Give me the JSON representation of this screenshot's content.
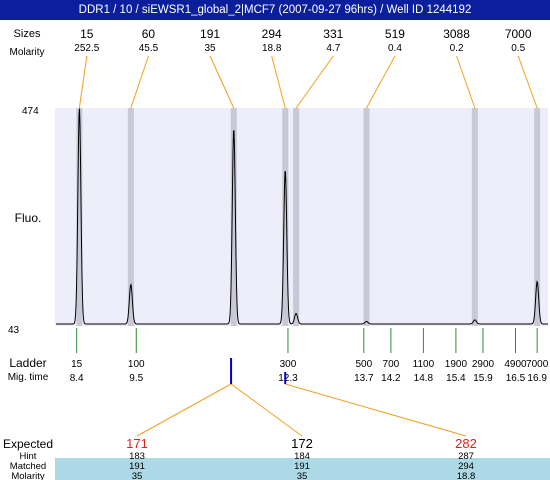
{
  "header": {
    "title": "DDR1 / 10 / siEWSR1_global_2|MCF7 (2007-09-27 96hrs) / Well ID 1244192"
  },
  "row_labels": {
    "sizes": "Sizes",
    "molarity": "Molarity",
    "fluo": "Fluo.",
    "ladder": "Ladder",
    "mig_time": "Mig. time",
    "expected": "Expected",
    "hint": "Hint",
    "matched": "Matched",
    "molarity_bottom": "Molarity"
  },
  "colors": {
    "title_bg": "#0b1f9c",
    "plot_bg": "#eeeefa",
    "peak_band": "#c8c8d6",
    "connector": "#f0a020",
    "ladder_tick": "#2e8b2e",
    "expected_red": "#dd2222",
    "mark_blue": "#0000cc",
    "matched_bg": "#add8e6",
    "trace": "#000000"
  },
  "chart_data": {
    "type": "line",
    "xlabel": "",
    "ylabel": "Fluo.",
    "ylim": [
      43,
      474
    ],
    "ytick_labels": [
      "474",
      "43"
    ],
    "xlim": [
      8.0,
      17.1
    ],
    "peaks": [
      {
        "size": "15",
        "molarity": "252.5",
        "time": 8.45,
        "height": 474
      },
      {
        "size": "60",
        "molarity": "45.5",
        "time": 9.4,
        "height": 125
      },
      {
        "size": "191",
        "molarity": "35",
        "time": 11.3,
        "height": 434
      },
      {
        "size": "294",
        "molarity": "18.8",
        "time": 12.25,
        "height": 352
      },
      {
        "size": "331",
        "molarity": "4.7",
        "time": 12.45,
        "height": 68
      },
      {
        "size": "519",
        "molarity": "0.4",
        "time": 13.75,
        "height": 52
      },
      {
        "size": "3088",
        "molarity": "0.2",
        "time": 15.75,
        "height": 55
      },
      {
        "size": "7000",
        "molarity": "0.5",
        "time": 16.9,
        "height": 131
      }
    ],
    "ladder": [
      {
        "size": "15",
        "time": "8.4"
      },
      {
        "size": "100",
        "time": "9.5"
      },
      {
        "size": "300",
        "time": "12.3"
      },
      {
        "size": "500",
        "time": "13.7"
      },
      {
        "size": "700",
        "time": "14.2"
      },
      {
        "size": "1100",
        "time": "14.8"
      },
      {
        "size": "1900",
        "time": "15.4"
      },
      {
        "size": "2900",
        "time": "15.9"
      },
      {
        "size": "4900",
        "time": "16.5"
      },
      {
        "size": "7000",
        "time": "16.9"
      }
    ],
    "expected": [
      {
        "expected": "171",
        "hint": "183",
        "matched": "191",
        "molarity": "35",
        "time": 11.25
      },
      {
        "expected": "172",
        "hint": "184",
        "matched": "191",
        "molarity": "35",
        "time": 11.25
      },
      {
        "expected": "282",
        "hint": "287",
        "matched": "294",
        "molarity": "18.8",
        "time": 12.25
      }
    ]
  }
}
